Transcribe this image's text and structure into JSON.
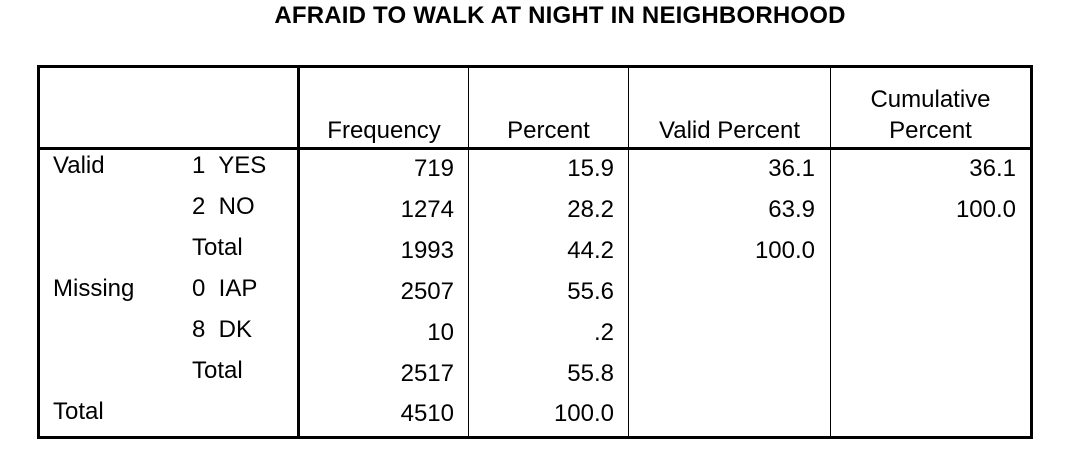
{
  "chart_data": {
    "type": "table",
    "title": "AFRAID TO WALK AT NIGHT IN NEIGHBORHOOD",
    "columns": [
      "Frequency",
      "Percent",
      "Valid Percent",
      "Cumulative Percent"
    ],
    "column_header_lines": {
      "cumulative_line1": "Cumulative",
      "cumulative_line2": "Percent"
    },
    "rows": [
      {
        "group": "Valid",
        "label": "1  YES",
        "frequency": "719",
        "percent": "15.9",
        "valid_percent": "36.1",
        "cumulative_percent": "36.1"
      },
      {
        "group": "",
        "label": "2  NO",
        "frequency": "1274",
        "percent": "28.2",
        "valid_percent": "63.9",
        "cumulative_percent": "100.0"
      },
      {
        "group": "",
        "label": "Total",
        "frequency": "1993",
        "percent": "44.2",
        "valid_percent": "100.0",
        "cumulative_percent": ""
      },
      {
        "group": "Missing",
        "label": "0  IAP",
        "frequency": "2507",
        "percent": "55.6",
        "valid_percent": "",
        "cumulative_percent": ""
      },
      {
        "group": "",
        "label": "8  DK",
        "frequency": "10",
        "percent": ".2",
        "valid_percent": "",
        "cumulative_percent": ""
      },
      {
        "group": "",
        "label": "Total",
        "frequency": "2517",
        "percent": "55.8",
        "valid_percent": "",
        "cumulative_percent": ""
      },
      {
        "group": "Total",
        "label": "",
        "frequency": "4510",
        "percent": "100.0",
        "valid_percent": "",
        "cumulative_percent": ""
      }
    ]
  }
}
